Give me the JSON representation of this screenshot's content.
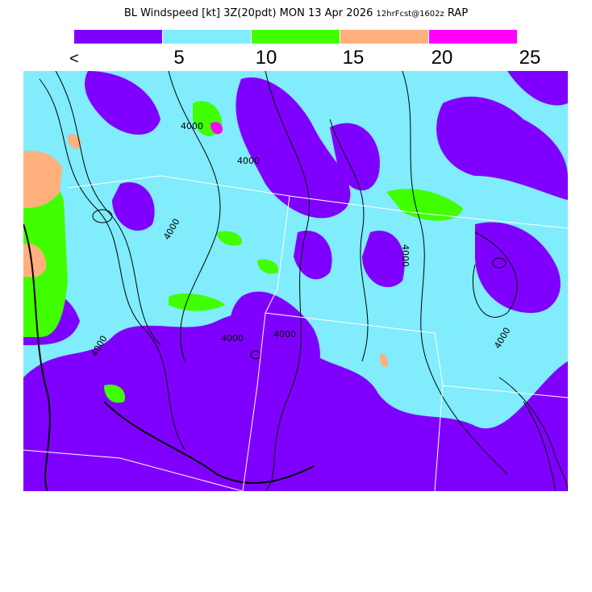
{
  "title": {
    "main": "BL Windspeed [kt] 3Z(20pdt) MON 13 Apr 2026",
    "forecast": "12hrFcst@1602z",
    "model": "RAP"
  },
  "colorbar": {
    "colors": [
      "#8000ff",
      "#80ecfc",
      "#40ff00",
      "#ffb07c",
      "#ff00ff"
    ],
    "labels": [
      "<",
      "5",
      "10",
      "15",
      "20",
      "25"
    ]
  },
  "map": {
    "contour_label": "4000",
    "border_color": "#ffffff",
    "contour_color": "#000000"
  }
}
